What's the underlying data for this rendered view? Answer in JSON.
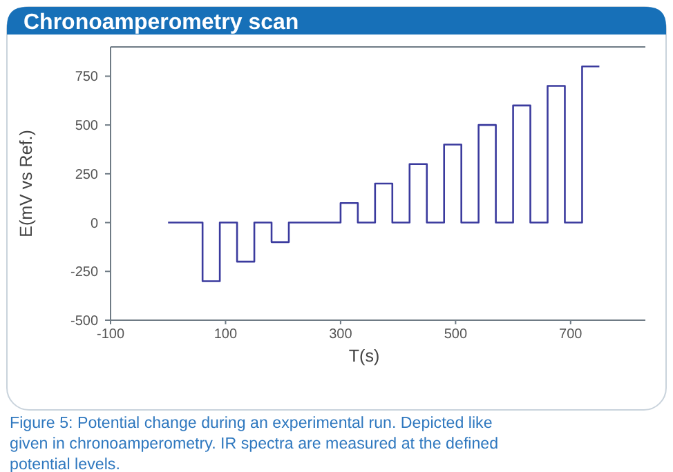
{
  "chart_data": {
    "type": "step",
    "title": "Chronoamperometry scan",
    "xlabel": "T(s)",
    "ylabel": "E(mV vs Ref.)",
    "annotations": [
      "Figure 5: Potential change during an experimental run. Depicted like given in chronoamperometry. IR spectra are measured at the defined potential levels."
    ],
    "x": [
      0,
      60,
      90,
      120,
      150,
      180,
      210,
      300,
      330,
      360,
      390,
      420,
      450,
      480,
      510,
      540,
      570,
      600,
      630,
      660,
      690,
      720,
      750
    ],
    "series": [
      {
        "color": "#3b3b9e",
        "values": [
          0,
          -300,
          0,
          -200,
          0,
          -100,
          0,
          100,
          0,
          200,
          0,
          300,
          0,
          400,
          0,
          500,
          0,
          600,
          0,
          700,
          0,
          800,
          800
        ]
      }
    ],
    "xlim": [
      -100,
      830
    ],
    "xticks": [
      -100,
      100,
      300,
      500,
      700
    ],
    "ylim": [
      -500,
      900
    ],
    "yticks": [
      -500,
      -250,
      0,
      250,
      500,
      750
    ],
    "grid": false,
    "marker": "none",
    "line_style": "solid"
  }
}
